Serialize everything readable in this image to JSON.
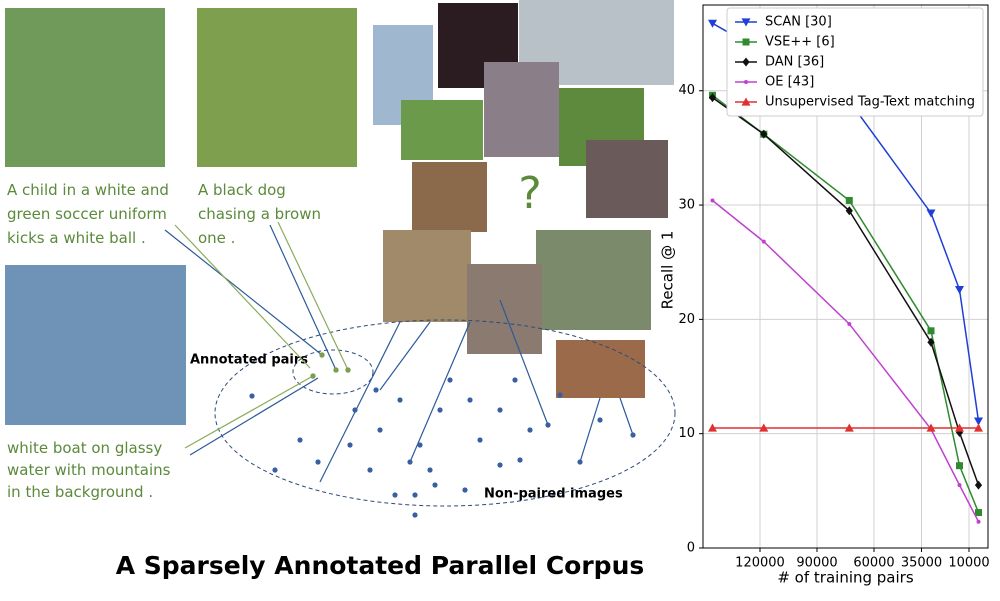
{
  "diagram": {
    "captions": [
      "A child in a white and green soccer uniform kicks a white ball .",
      "A black dog chasing a brown one .",
      "white boat on glassy water with mountains in the background ."
    ],
    "question": "?",
    "annotated_label": "Annotated pairs",
    "nonpaired_label": "Non-paired images",
    "title": "A Sparsely Annotated Parallel Corpus"
  },
  "chart_data": {
    "type": "line",
    "xlabel": "# of training pairs",
    "ylabel": "Recall @ 1",
    "xlim": [
      150000,
      0
    ],
    "ylim": [
      0,
      47.5
    ],
    "xticks": [
      120000,
      90000,
      60000,
      35000,
      10000
    ],
    "yticks": [
      0,
      10,
      20,
      30,
      40
    ],
    "grid": true,
    "legend": "upper right",
    "series": [
      {
        "name": "SCAN [30]",
        "color": "#1f3fd6",
        "marker": "triangle-down",
        "x": [
          145000,
          73000,
          30000,
          15000,
          5000
        ],
        "values": [
          45.9,
          39.1,
          29.3,
          22.6,
          11.1
        ]
      },
      {
        "name": "VSE++ [6]",
        "color": "#2e8b2e",
        "marker": "square",
        "x": [
          145000,
          118000,
          73000,
          30000,
          15000,
          5000
        ],
        "values": [
          39.6,
          36.2,
          30.4,
          19.0,
          7.2,
          3.1
        ]
      },
      {
        "name": "DAN [36]",
        "color": "#111111",
        "marker": "diamond",
        "x": [
          145000,
          118000,
          73000,
          30000,
          15000,
          5000
        ],
        "values": [
          39.4,
          36.2,
          29.5,
          18.0,
          10.1,
          5.5
        ]
      },
      {
        "name": "OE [43]",
        "color": "#c040d0",
        "marker": "dot",
        "x": [
          145000,
          118000,
          73000,
          30000,
          15000,
          5000
        ],
        "values": [
          30.4,
          26.8,
          19.6,
          10.4,
          5.5,
          2.3
        ]
      },
      {
        "name": "Unsupervised Tag-Text matching",
        "color": "#e03030",
        "marker": "triangle-up",
        "x": [
          145000,
          118000,
          73000,
          30000,
          15000,
          5000
        ],
        "values": [
          10.5,
          10.5,
          10.5,
          10.5,
          10.5,
          10.5
        ]
      }
    ]
  }
}
